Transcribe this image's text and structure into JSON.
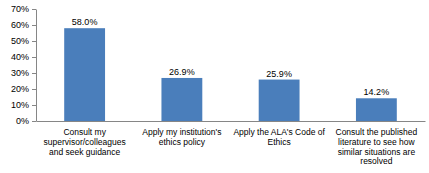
{
  "chart_data": {
    "type": "bar",
    "categories": [
      "Consult my supervisor/colleagues and seek guidance",
      "Apply my institution's ethics policy",
      "Apply the ALA's Code of Ethics",
      "Consult the published literature to see how similar situations are resolved"
    ],
    "values": [
      58.0,
      26.9,
      25.9,
      14.2
    ],
    "value_labels": [
      "58.0%",
      "26.9%",
      "25.9%",
      "14.2%"
    ],
    "data_labels": true,
    "color": "#4a7ebb",
    "ylim": [
      0,
      70
    ],
    "yticks": [
      {
        "value": 0,
        "label": "0%"
      },
      {
        "value": 10,
        "label": "10%"
      },
      {
        "value": 20,
        "label": "20%"
      },
      {
        "value": 30,
        "label": "30%"
      },
      {
        "value": 40,
        "label": "40%"
      },
      {
        "value": 50,
        "label": "50%"
      },
      {
        "value": 60,
        "label": "60%"
      },
      {
        "value": 70,
        "label": "70%"
      }
    ],
    "grid": false
  }
}
